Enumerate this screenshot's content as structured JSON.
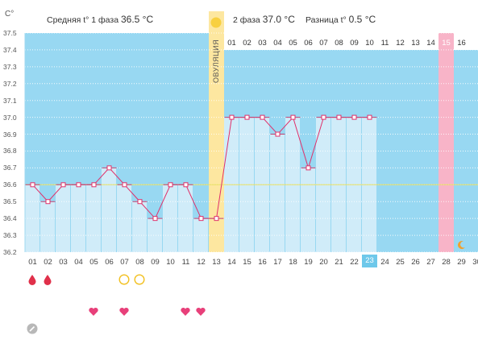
{
  "header": {
    "phase1_label": "Средняя t° 1 фаза",
    "phase1_value": "36.5 °C",
    "phase2_label": "2 фаза",
    "phase2_value": "37.0 °C",
    "diff_label": "Разница t°",
    "diff_value": "0.5 °C"
  },
  "ovulation_label": "ОВУЛЯЦИЯ",
  "colors": {
    "sky": "#98d8f2",
    "bar": "#d0ecf9",
    "line": "#e0306a",
    "ovulation": "#fde7a0",
    "highlight": "#f8b4c8",
    "coverline": "#e8e060",
    "today": "#6ec8ea"
  },
  "today_day": "23",
  "highlight_day": "28",
  "phase2_labels": [
    "01",
    "02",
    "03",
    "04",
    "05",
    "06",
    "07",
    "08",
    "09",
    "10",
    "11",
    "12",
    "13",
    "14",
    "15",
    "16"
  ],
  "chart_data": {
    "type": "bar",
    "title": "",
    "ylabel": "C°",
    "ylim": [
      36.2,
      37.5
    ],
    "yticks": [
      "37.5",
      "37.4",
      "37.3",
      "37.2",
      "37.1",
      "37.0",
      "36.9",
      "36.8",
      "36.7",
      "36.6",
      "36.5",
      "36.4",
      "36.3",
      "36.2"
    ],
    "coverline": 36.6,
    "ovulation_day": "13",
    "categories": [
      "01",
      "02",
      "03",
      "04",
      "05",
      "06",
      "07",
      "08",
      "09",
      "10",
      "11",
      "12",
      "13",
      "14",
      "15",
      "16",
      "17",
      "18",
      "19",
      "20",
      "21",
      "22",
      "23",
      "24",
      "25",
      "26",
      "27",
      "28",
      "29",
      "30"
    ],
    "values": [
      36.6,
      36.5,
      36.6,
      36.6,
      36.6,
      36.7,
      36.6,
      36.5,
      36.4,
      36.6,
      36.6,
      36.4,
      36.4,
      37.0,
      37.0,
      37.0,
      36.9,
      37.0,
      36.7,
      37.0,
      37.0,
      37.0,
      37.0,
      null,
      null,
      null,
      null,
      null,
      null,
      null
    ]
  },
  "symbols": {
    "drops": [
      "01",
      "02"
    ],
    "circles": [
      "07",
      "08"
    ],
    "hearts": [
      "05",
      "07",
      "11",
      "12"
    ],
    "pencil": [
      "01"
    ],
    "moon": [
      "29"
    ]
  }
}
